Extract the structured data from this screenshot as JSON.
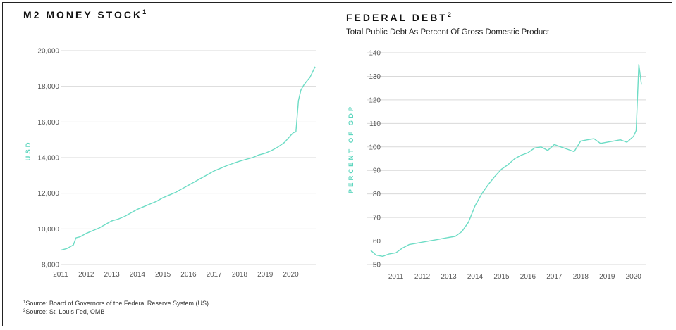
{
  "charts": {
    "m2": {
      "title": "M2 MONEY STOCK",
      "title_sup": "1"
    },
    "debt": {
      "title": "FEDERAL DEBT",
      "title_sup": "2",
      "subtitle": "Total Public Debt As Percent Of Gross Domestic Product"
    }
  },
  "footnotes": [
    {
      "mark": "1",
      "text": "Source: Board of Governors of the Federal Reserve System (US)"
    },
    {
      "mark": "2",
      "text": "Source: St. Louis Fed, OMB"
    }
  ],
  "colors": {
    "line": "#6ddcc5",
    "axis_label": "#5fd6bf",
    "grid": "#d9d9d9",
    "tick": "#555555"
  },
  "chart_data": [
    {
      "type": "line",
      "title": "M2 MONEY STOCK",
      "xlabel": "",
      "ylabel": "USD",
      "xlim": [
        2011,
        2020.95
      ],
      "ylim": [
        8000,
        20000
      ],
      "xticks": [
        2011,
        2012,
        2013,
        2014,
        2015,
        2016,
        2017,
        2018,
        2019,
        2020
      ],
      "yticks": [
        8000,
        10000,
        12000,
        14000,
        16000,
        18000,
        20000
      ],
      "ytick_labels": [
        "8,000",
        "10,000",
        "12,000",
        "14,000",
        "16,000",
        "18,000",
        "20,000"
      ],
      "grid": true,
      "series": [
        {
          "x": [
            2011.0,
            2011.25,
            2011.5,
            2011.6,
            2011.75,
            2012.0,
            2012.25,
            2012.5,
            2012.75,
            2013.0,
            2013.25,
            2013.5,
            2013.75,
            2014.0,
            2014.25,
            2014.5,
            2014.75,
            2015.0,
            2015.25,
            2015.5,
            2015.75,
            2016.0,
            2016.25,
            2016.5,
            2016.75,
            2017.0,
            2017.25,
            2017.5,
            2017.75,
            2018.0,
            2018.25,
            2018.5,
            2018.75,
            2019.0,
            2019.25,
            2019.5,
            2019.75,
            2020.0,
            2020.1,
            2020.2,
            2020.3,
            2020.4,
            2020.5,
            2020.6,
            2020.75,
            2020.85,
            2020.95
          ],
          "y": [
            8800,
            8900,
            9100,
            9500,
            9550,
            9750,
            9900,
            10050,
            10250,
            10450,
            10550,
            10700,
            10900,
            11100,
            11250,
            11400,
            11550,
            11750,
            11900,
            12050,
            12250,
            12450,
            12650,
            12850,
            13050,
            13250,
            13400,
            13550,
            13680,
            13800,
            13900,
            14000,
            14150,
            14250,
            14400,
            14600,
            14850,
            15250,
            15400,
            15450,
            17200,
            17800,
            18050,
            18250,
            18500,
            18800,
            19100
          ]
        }
      ]
    },
    {
      "type": "line",
      "title": "FEDERAL DEBT",
      "subtitle": "Total Public Debt As Percent Of Gross Domestic Product",
      "xlabel": "",
      "ylabel": "PERCENT OF GDP",
      "xlim": [
        2010.05,
        2020.3
      ],
      "ylim": [
        50,
        140
      ],
      "xticks": [
        2011,
        2012,
        2013,
        2014,
        2015,
        2016,
        2017,
        2018,
        2019,
        2020
      ],
      "yticks": [
        50,
        60,
        70,
        80,
        90,
        100,
        110,
        120,
        130,
        140
      ],
      "grid": true,
      "series": [
        {
          "x": [
            2010.05,
            2010.25,
            2010.5,
            2010.75,
            2011.0,
            2011.25,
            2011.5,
            2011.75,
            2012.0,
            2012.25,
            2012.5,
            2012.75,
            2013.0,
            2013.25,
            2013.5,
            2013.75,
            2014.0,
            2014.25,
            2014.5,
            2014.75,
            2015.0,
            2015.25,
            2015.5,
            2015.75,
            2016.0,
            2016.25,
            2016.5,
            2016.75,
            2017.0,
            2017.25,
            2017.5,
            2017.75,
            2018.0,
            2018.25,
            2018.5,
            2018.75,
            2019.0,
            2019.25,
            2019.5,
            2019.75,
            2020.0,
            2020.1,
            2020.2,
            2020.3
          ],
          "y": [
            56,
            54,
            53.5,
            54.5,
            55,
            57,
            58.5,
            59,
            59.5,
            60,
            60.5,
            61,
            61.5,
            62,
            64,
            68,
            75,
            80,
            84,
            87.5,
            90.5,
            92.5,
            95,
            96.5,
            97.5,
            99.5,
            100,
            98.5,
            101,
            100,
            99,
            98,
            102.5,
            103,
            103.5,
            101.5,
            102,
            102.5,
            103,
            102,
            104.5,
            107,
            135,
            126.5
          ]
        }
      ]
    }
  ]
}
